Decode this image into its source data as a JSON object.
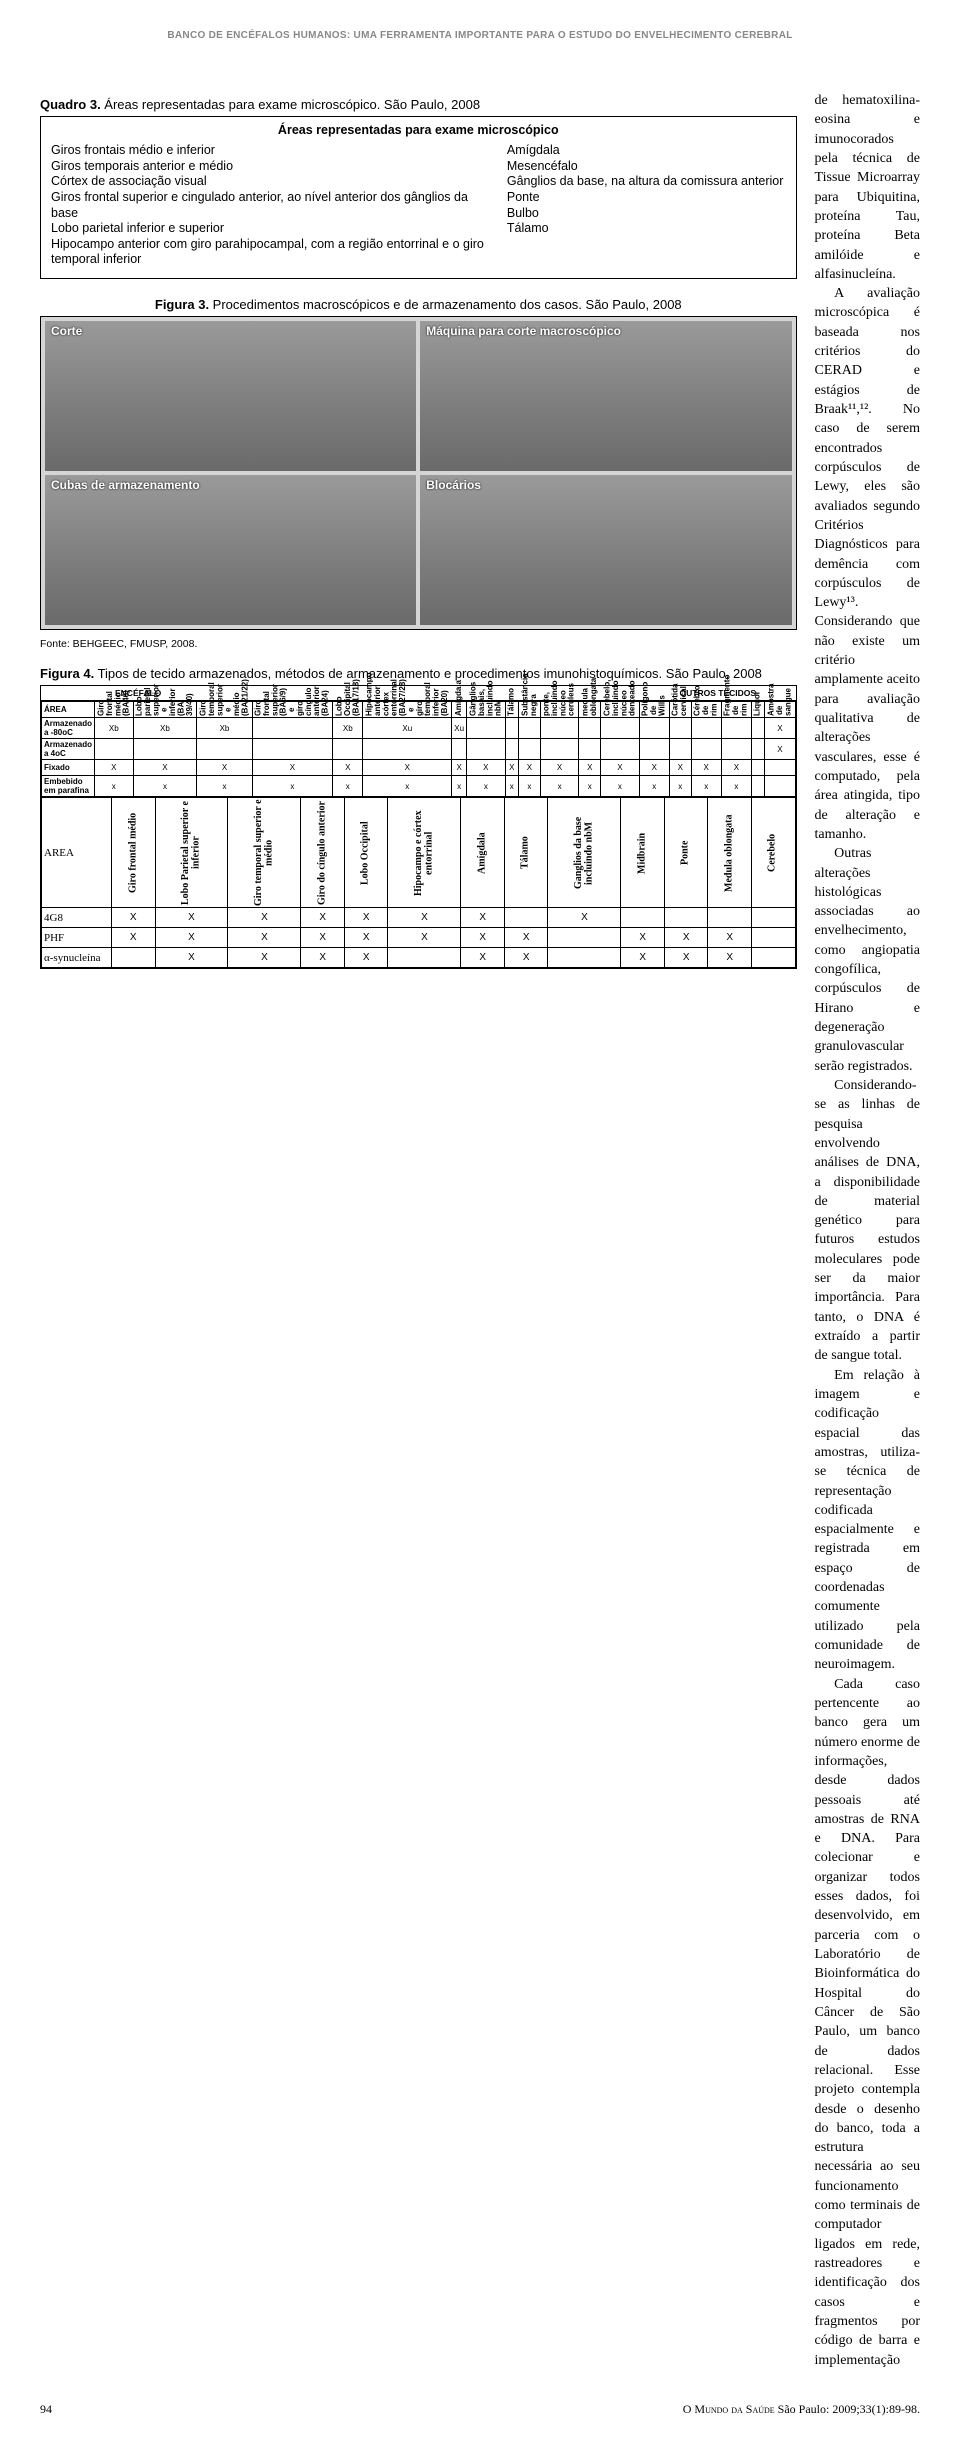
{
  "running_head": "BANCO DE ENCÉFALOS HUMANOS: UMA FERRAMENTA IMPORTANTE PARA O ESTUDO DO ENVELHECIMENTO CEREBRAL",
  "quadro3": {
    "caption_bold": "Quadro 3.",
    "caption_rest": " Áreas representadas para exame microscópico. São Paulo, 2008",
    "box_title": "Áreas representadas para exame microscópico",
    "left_items": [
      "Giros frontais médio e inferior",
      "Giros temporais anterior e médio",
      "Córtex de associação visual",
      "Giros frontal superior e cingulado anterior, ao nível anterior dos gânglios da base",
      "Lobo parietal inferior e superior",
      "Hipocampo anterior com giro parahipocampal, com a região entorrinal e o giro temporal inferior"
    ],
    "right_items": [
      "Amígdala",
      "Mesencéfalo",
      "Gânglios da base, na altura da comissura anterior",
      "Ponte",
      "Bulbo",
      "Tálamo"
    ]
  },
  "figura3": {
    "caption_bold": "Figura 3.",
    "caption_rest": " Procedimentos macroscópicos e de armazenamento dos casos. São Paulo, 2008",
    "panels": [
      "Corte",
      "Máquina para corte macroscópico",
      "Cubas de armazenamento",
      "Blocários"
    ],
    "fonte": "Fonte: BEHGEEC, FMUSP, 2008."
  },
  "figura4": {
    "caption_bold": "Figura 4.",
    "caption_rest": " Tipos de tecido armazenados, métodos de armazenamento e procedimentos imunohistoquímicos. São Paulo, 2008",
    "section_encefalo": "ENCÉFALO",
    "section_outros": "OUTROS TECIDOS",
    "t1_cols": [
      "Giro frontal médio (BA46)",
      "Lobo parietal superior e inferior (BA 39/40)",
      "Giro temporal superior e médio (BA21/22)",
      "Giro frontal superior (BA6/9) e giro cíngulo anterior (BA24)",
      "Lobo Occipital (BA17/18)",
      "Hipocampo anterior, córtex entorrinal (BA27/28) e giro temporal inferior (BA20)",
      "Amígdala",
      "Gânglios basais, incluindo nbM",
      "Tálamo",
      "Substância negra",
      "ponte, incluindo núcleo cerúleus",
      "medula oblongata",
      "Cerebelo, incluindo núcleo denteado",
      "Polígono de Willis",
      "Carótida cervical",
      "Cérebro de rim",
      "Fragmento de rim",
      "Liquor",
      "Amostra de sangue"
    ],
    "t1_rows": [
      {
        "label": "Armazenado a -80oC",
        "cells": [
          "Xb",
          "Xb",
          "Xb",
          "",
          "Xb",
          "Xu",
          "Xu",
          "",
          "",
          "",
          "",
          "",
          "",
          "",
          "",
          "",
          "",
          "",
          "X"
        ]
      },
      {
        "label": "Armazenado a 4oC",
        "cells": [
          "",
          "",
          "",
          "",
          "",
          "",
          "",
          "",
          "",
          "",
          "",
          "",
          "",
          "",
          "",
          "",
          "",
          "",
          "X"
        ]
      },
      {
        "label": "Fixado",
        "cells": [
          "X",
          "X",
          "X",
          "X",
          "X",
          "X",
          "X",
          "X",
          "X",
          "X",
          "X",
          "X",
          "X",
          "X",
          "X",
          "X",
          "X",
          "",
          ""
        ]
      },
      {
        "label": "Embebido em parafina",
        "cells": [
          "x",
          "x",
          "x",
          "x",
          "x",
          "x",
          "x",
          "x",
          "x",
          "x",
          "x",
          "x",
          "x",
          "x",
          "x",
          "x",
          "x",
          "",
          ""
        ]
      }
    ],
    "t1_area": "ÁREA",
    "t2_cols": [
      "Giro frontal médio",
      "Lobo Parietal superior e inferior",
      "Giro temporal superior e médio",
      "Giro do cíngulo anterior",
      "Lobo Occipital",
      "Hipocampo e córtex entorrinal",
      "Amígdala",
      "Tálamo",
      "Ganglios da base incluindo nbM",
      "Midbrain",
      "Ponte",
      "Medula oblongata",
      "Cerebelo"
    ],
    "t2_rows": [
      {
        "label": "4G8",
        "cells": [
          "X",
          "X",
          "X",
          "X",
          "X",
          "X",
          "X",
          "",
          "X",
          "",
          "",
          "",
          ""
        ]
      },
      {
        "label": "PHF",
        "cells": [
          "X",
          "X",
          "X",
          "X",
          "X",
          "X",
          "X",
          "X",
          "",
          "X",
          "X",
          "X",
          ""
        ]
      },
      {
        "label": "α-synucleína",
        "cells": [
          "",
          "X",
          "X",
          "X",
          "X",
          "",
          "X",
          "X",
          "",
          "X",
          "X",
          "X",
          ""
        ]
      }
    ],
    "t2_area": "AREA"
  },
  "right_paragraphs": [
    "de hematoxilina-eosina e imunocorados pela técnica de Tissue Microarray para Ubiquitina, proteína Tau, proteína Beta amilóide e alfasinucleína.",
    "A avaliação microscópica é baseada nos critérios do CERAD e estágios de Braak¹¹,¹². No caso de serem encontrados corpúsculos de Lewy, eles são avaliados segundo Critérios Diagnósticos para demência com corpúsculos de Lewy¹³. Considerando que não existe um critério amplamente aceito para avaliação qualitativa de alterações vasculares, esse é computado, pela área atingida, tipo de alteração e tamanho.",
    "Outras alterações histológicas associadas ao envelhecimento, como angiopatia congofílica, corpúsculos de Hirano e degeneração granulovascular serão registrados.",
    "Considerando-se as linhas de pesquisa envolvendo análises de DNA, a disponibilidade de material genético para futuros estudos moleculares pode ser da maior importância. Para tanto, o DNA é extraído a partir de sangue total.",
    "Em relação à imagem e codificação espacial das amostras, utiliza-se técnica de representação codificada espacialmente e registrada em espaço de coordenadas comumente utilizado pela comunidade de neuroimagem.",
    "Cada caso pertencente ao banco gera um número enorme de informações, desde dados pessoais até amostras de RNA e DNA. Para colecionar e organizar todos esses dados, foi desenvolvido, em parceria com o Laboratório de Bioinformática do Hospital do Câncer de São Paulo, um banco de dados relacional. Esse projeto contempla desde o desenho do banco, toda a estrutura necessária ao seu funcionamento como terminais de computador ligados em rede, rastreadores e identificação dos casos e fragmentos por código de barra e implementação"
  ],
  "footer": {
    "page": "94",
    "cite": "O Mundo da Saúde São Paulo: 2009;33(1):89-98."
  },
  "colors": {
    "text": "#000000",
    "muted": "#888888",
    "panel_bg": "#7c7c7c"
  }
}
